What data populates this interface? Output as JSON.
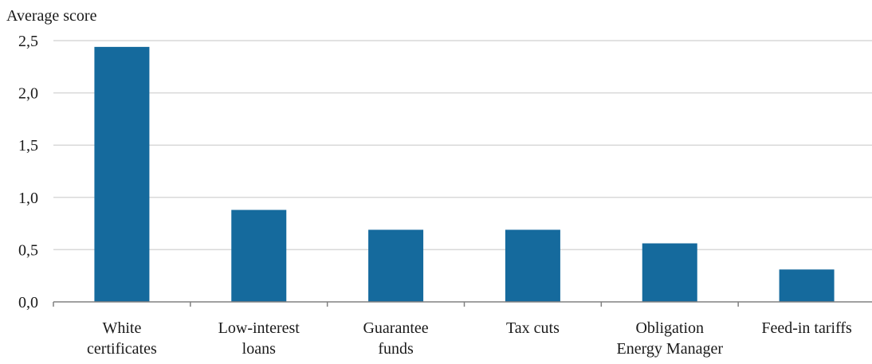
{
  "chart_data": {
    "type": "bar",
    "ylabel": "Average score",
    "xlabel": "",
    "categories": [
      [
        "White",
        "certificates"
      ],
      [
        "Low-interest",
        "loans"
      ],
      [
        "Guarantee",
        "funds"
      ],
      [
        "Tax cuts"
      ],
      [
        "Obligation",
        "Energy Manager"
      ],
      [
        "Feed-in tariffs"
      ]
    ],
    "values": [
      2.44,
      0.88,
      0.69,
      0.69,
      0.56,
      0.31
    ],
    "ylim": [
      0,
      2.5
    ],
    "yticks": [
      0,
      0.5,
      1.0,
      1.5,
      2.0,
      2.5
    ],
    "ytick_labels": [
      "0,0",
      "0,5",
      "1,0",
      "1,5",
      "2,0",
      "2,5"
    ],
    "grid": true,
    "bar_color": "#156a9d"
  }
}
